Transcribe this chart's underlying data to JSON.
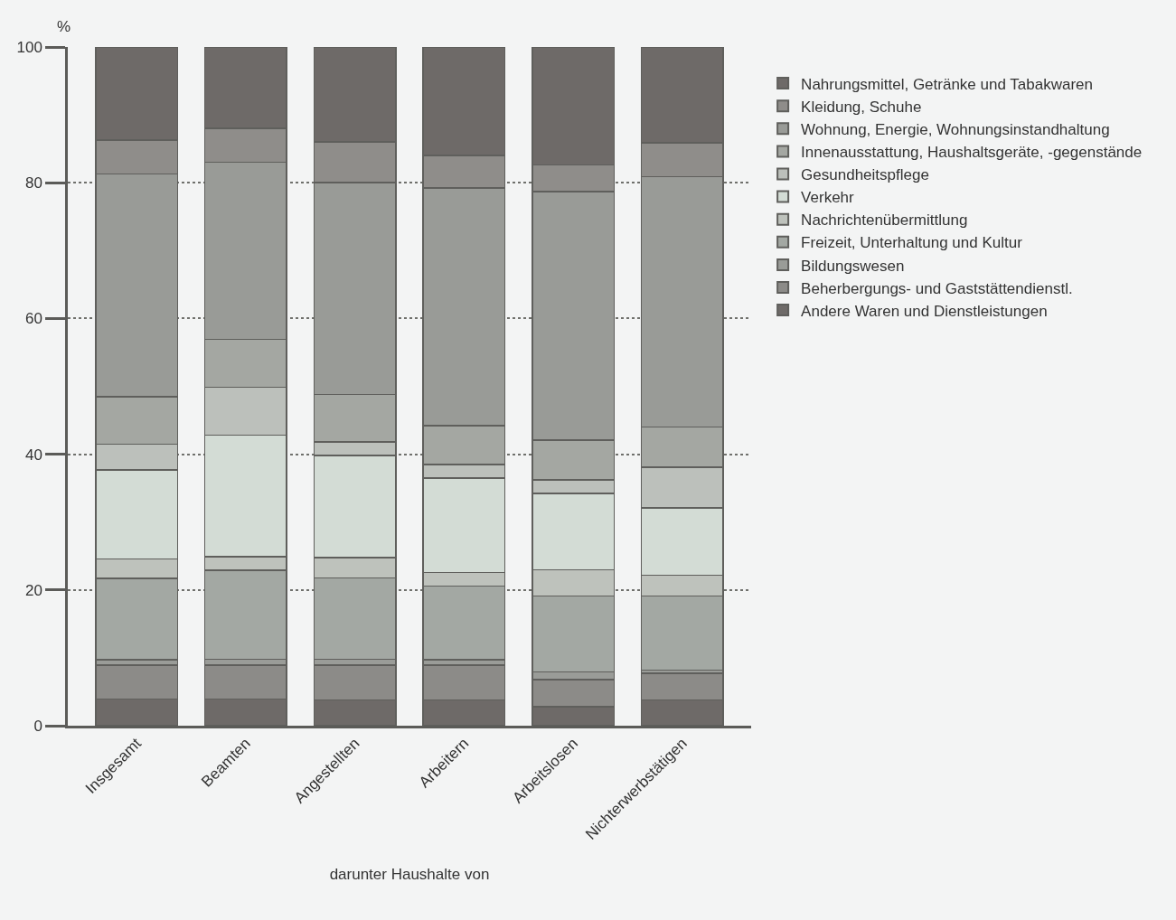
{
  "chart_data": {
    "type": "bar",
    "stacked": true,
    "xlabel": "darunter Haushalte von",
    "ylabel": "%",
    "categories": [
      "Insgesamt",
      "Beamten",
      "Angestellten",
      "Arbeitern",
      "Arbeitslosen",
      "Nichterwerbstätigen"
    ],
    "ylim": [
      0,
      100
    ],
    "yticks": [
      0,
      20,
      40,
      60,
      80,
      100
    ],
    "grid": "y",
    "legend": "right",
    "series": [
      {
        "name": "Andere Waren und Dienstleistungen",
        "color": "#6e6a68",
        "values": [
          3.9,
          3.9,
          3.8,
          3.8,
          2.8,
          3.8
        ]
      },
      {
        "name": "Beherbergungs- und Gaststättendienstl.",
        "color": "#8c8b88",
        "values": [
          5.0,
          5.0,
          5.1,
          5.1,
          4.0,
          3.9
        ]
      },
      {
        "name": "Bildungswesen",
        "color": "#9a9c98",
        "values": [
          0.8,
          0.9,
          0.9,
          0.8,
          1.1,
          0.5
        ]
      },
      {
        "name": "Freizeit, Unterhaltung und Kultur",
        "color": "#a3a8a3",
        "values": [
          12.0,
          13.1,
          12.0,
          10.9,
          11.2,
          10.9
        ]
      },
      {
        "name": "Nachrichtenübermittlung",
        "color": "#bec2bc",
        "values": [
          2.9,
          2.0,
          3.0,
          2.0,
          3.9,
          3.1
        ]
      },
      {
        "name": "Verkehr",
        "color": "#d3dcd5",
        "values": [
          13.1,
          17.9,
          15.0,
          13.9,
          11.2,
          9.9
        ]
      },
      {
        "name": "Gesundheitspflege",
        "color": "#bcc0bb",
        "values": [
          3.8,
          7.1,
          2.0,
          2.0,
          2.0,
          6.0
        ]
      },
      {
        "name": "Innenausstattung, Haushaltsgeräte, -gegenstände",
        "color": "#a4a7a2",
        "values": [
          7.0,
          7.0,
          7.0,
          5.7,
          5.9,
          5.9
        ]
      },
      {
        "name": "Wohnung, Energie, Wohnungsinstandhaltung",
        "color": "#999b97",
        "values": [
          32.8,
          26.1,
          31.2,
          35.0,
          36.6,
          36.9
        ]
      },
      {
        "name": "Kleidung, Schuhe",
        "color": "#8f8d8a",
        "values": [
          5.0,
          5.0,
          6.0,
          4.8,
          3.9,
          5.0
        ]
      },
      {
        "name": "Nahrungsmittel, Getränke und Tabakwaren",
        "color": "#6e6a68",
        "values": [
          13.7,
          12.0,
          14.0,
          16.0,
          17.4,
          14.1
        ]
      }
    ]
  }
}
